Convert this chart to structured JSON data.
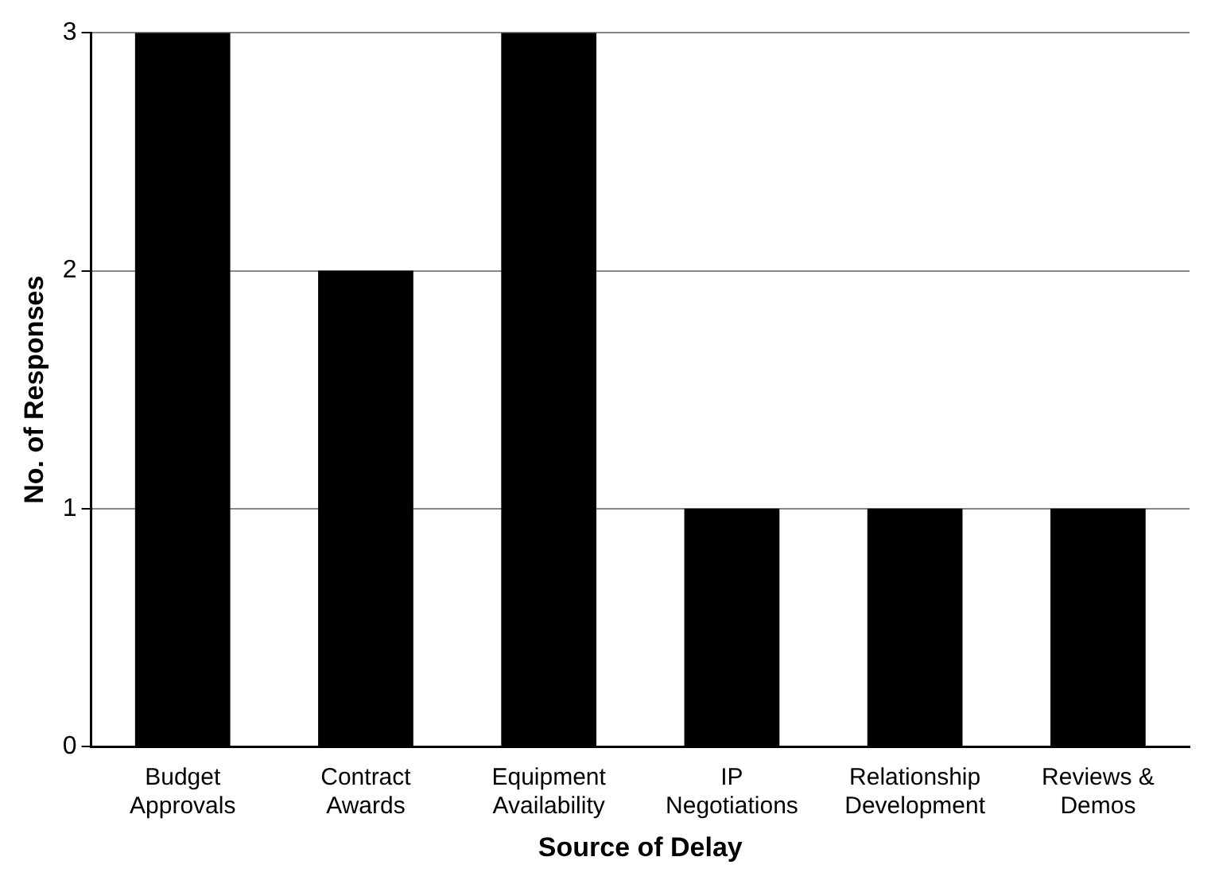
{
  "chart_data": {
    "type": "bar",
    "xlabel": "Source of Delay",
    "ylabel": "No. of Responses",
    "categories": [
      "Budget Approvals",
      "Contract Awards",
      "Equipment Availability",
      "IP Negotiations",
      "Relationship Development",
      "Reviews & Demos"
    ],
    "values": [
      3,
      2,
      3,
      1,
      1,
      1
    ],
    "color": "#000000",
    "ylim": [
      0,
      3
    ],
    "yticks": [
      0,
      1,
      2,
      3
    ],
    "grid": "y"
  }
}
